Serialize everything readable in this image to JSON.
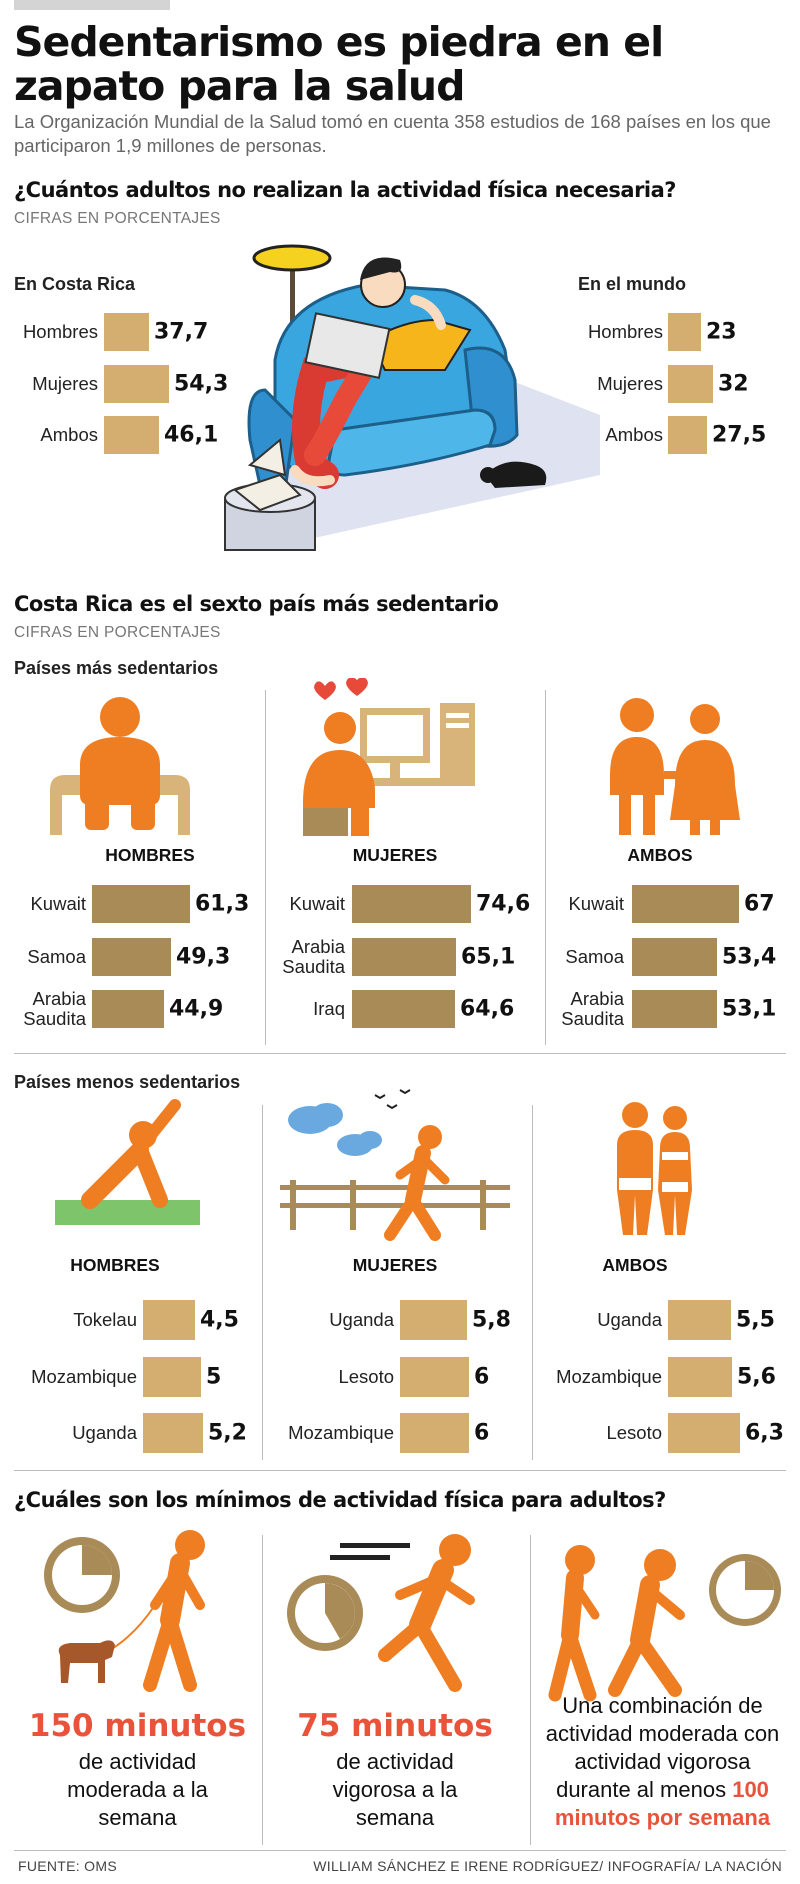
{
  "title": "Sedentarismo es piedra en el zapato para la salud",
  "intro": "La Organización Mundial de la Salud tomó en cuenta 358 estudios de 168 países en los que participaron 1,9 millones de personas.",
  "section1": {
    "title": "¿Cuántos adultos no realizan la actividad física necesaria?",
    "subtitle": "CIFRAS EN PORCENTAJES",
    "costa_rica_label": "En Costa Rica",
    "world_label": "En el mundo"
  },
  "section2": {
    "title": "Costa Rica es el sexto país más sedentario",
    "subtitle": "CIFRAS EN PORCENTAJES",
    "most_label": "Países más sedentarios",
    "least_label": "Países menos sedentarios",
    "col_men": "HOMBRES",
    "col_women": "MUJERES",
    "col_both": "AMBOS"
  },
  "section3": {
    "title": "¿Cuáles son los mínimos de actividad física para adultos?",
    "col1_big": "150 minutos",
    "col1_text": "de actividad moderada a la semana",
    "col2_big": "75 minutos",
    "col2_text": "de actividad vigorosa a la semana",
    "col3_text": "Una combinación de actividad moderada con actividad vigorosa durante al menos",
    "col3_highlight": "100 minutos por semana"
  },
  "footer": {
    "source": "FUENTE: OMS",
    "credits": "WILLIAM SÁNCHEZ E IRENE RODRÍGUEZ/ INFOGRAFÍA/ LA NACIÓN"
  },
  "colors": {
    "bar_light": "#d3ae70",
    "bar_dark": "#a98b58",
    "orange": "#ef7d22",
    "highlight": "#e8533a"
  },
  "chart_data": [
    {
      "type": "bar",
      "title": "En Costa Rica",
      "categories": [
        "Hombres",
        "Mujeres",
        "Ambos"
      ],
      "values": [
        37.7,
        54.3,
        46.1
      ],
      "value_labels": [
        "37,7",
        "54,3",
        "46,1"
      ]
    },
    {
      "type": "bar",
      "title": "En el mundo",
      "categories": [
        "Hombres",
        "Mujeres",
        "Ambos"
      ],
      "values": [
        23,
        32,
        27.5
      ],
      "value_labels": [
        "23",
        "32",
        "27,5"
      ]
    },
    {
      "type": "bar",
      "title": "HOMBRES",
      "group": "Países más sedentarios",
      "categories": [
        "Kuwait",
        "Samoa",
        "Arabia Saudita"
      ],
      "values": [
        61.3,
        49.3,
        44.9
      ],
      "value_labels": [
        "61,3",
        "49,3",
        "44,9"
      ]
    },
    {
      "type": "bar",
      "title": "MUJERES",
      "group": "Países más sedentarios",
      "categories": [
        "Kuwait",
        "Arabia Saudita",
        "Iraq"
      ],
      "values": [
        74.6,
        65.1,
        64.6
      ],
      "value_labels": [
        "74,6",
        "65,1",
        "64,6"
      ]
    },
    {
      "type": "bar",
      "title": "AMBOS",
      "group": "Países más sedentarios",
      "categories": [
        "Kuwait",
        "Samoa",
        "Arabia Saudita"
      ],
      "values": [
        67,
        53.4,
        53.1
      ],
      "value_labels": [
        "67",
        "53,4",
        "53,1"
      ]
    },
    {
      "type": "bar",
      "title": "HOMBRES",
      "group": "Países menos sedentarios",
      "categories": [
        "Tokelau",
        "Mozambique",
        "Uganda"
      ],
      "values": [
        4.5,
        5,
        5.2
      ],
      "value_labels": [
        "4,5",
        "5",
        "5,2"
      ]
    },
    {
      "type": "bar",
      "title": "MUJERES",
      "group": "Países menos sedentarios",
      "categories": [
        "Uganda",
        "Lesoto",
        "Mozambique"
      ],
      "values": [
        5.8,
        6,
        6
      ],
      "value_labels": [
        "5,8",
        "6",
        "6"
      ]
    },
    {
      "type": "bar",
      "title": "AMBOS",
      "group": "Países menos sedentarios",
      "categories": [
        "Uganda",
        "Mozambique",
        "Lesoto"
      ],
      "values": [
        5.5,
        5.6,
        6.3
      ],
      "value_labels": [
        "5,5",
        "5,6",
        "6,3"
      ]
    }
  ]
}
